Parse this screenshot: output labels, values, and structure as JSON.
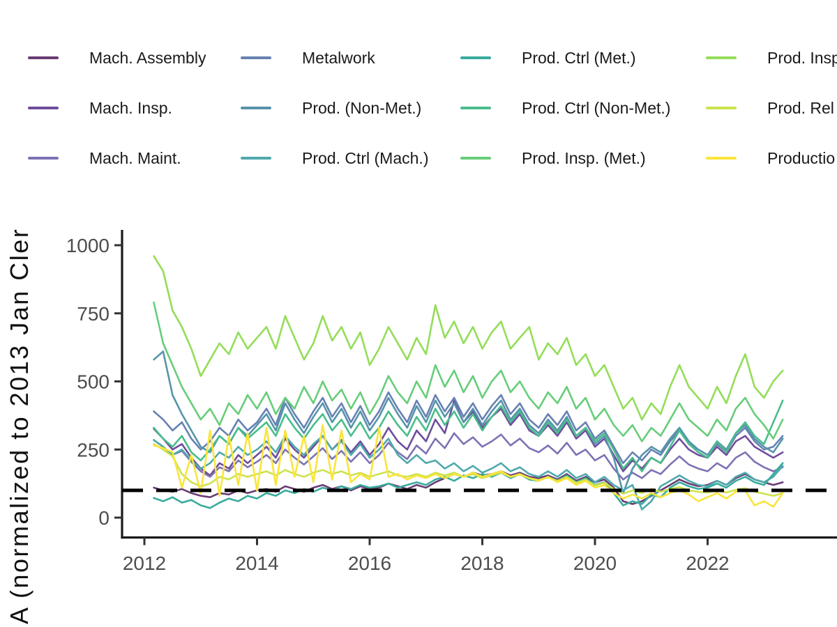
{
  "figure": {
    "background": "#ffffff",
    "axis_color": "#1a1a1a",
    "tick_color": "#333333",
    "tick_label_color": "#4d4d4d",
    "ylabel_visible": "A (normalized to 2013 Jan Cler",
    "reference_line": {
      "value": 100,
      "style": "dashed",
      "color": "#000000"
    }
  },
  "chart_data": {
    "type": "line",
    "title": "",
    "xlabel": "",
    "ylabel": "A (normalized to 2013 Jan Cler",
    "legend_position": "top",
    "grid": false,
    "x_start": 2012.1667,
    "x_step": 0.16667,
    "x_ticks": [
      2012,
      2014,
      2016,
      2018,
      2020,
      2022
    ],
    "y_ticks": [
      0,
      250,
      500,
      750,
      1000
    ],
    "xlim": [
      2011.6,
      2024.3
    ],
    "ylim": [
      -70,
      1070
    ],
    "reference_line_y": 100,
    "series": [
      {
        "name": "Mach. Assembly",
        "color": "#693c74",
        "values": [
          110,
          100,
          95,
          105,
          90,
          80,
          75,
          90,
          85,
          100,
          90,
          100,
          105,
          95,
          115,
          105,
          95,
          110,
          120,
          105,
          115,
          100,
          115,
          105,
          110,
          125,
          115,
          105,
          120,
          110,
          130,
          145,
          160,
          150,
          165,
          155,
          160,
          170,
          155,
          165,
          150,
          145,
          155,
          140,
          160,
          135,
          150,
          130,
          140,
          110,
          60,
          50,
          60,
          80,
          100,
          120,
          140,
          125,
          115,
          120,
          135,
          120,
          145,
          160,
          140,
          130,
          120,
          130
        ]
      },
      {
        "name": "Mach. Insp.",
        "color": "#6f4d9e",
        "values": [
          326,
          290,
          250,
          270,
          220,
          180,
          155,
          200,
          180,
          230,
          200,
          230,
          260,
          220,
          290,
          250,
          220,
          260,
          300,
          250,
          285,
          240,
          280,
          230,
          270,
          330,
          280,
          250,
          320,
          280,
          360,
          310,
          430,
          350,
          390,
          330,
          370,
          400,
          340,
          380,
          320,
          300,
          340,
          300,
          350,
          290,
          320,
          260,
          290,
          230,
          170,
          210,
          180,
          220,
          200,
          250,
          290,
          250,
          230,
          220,
          260,
          230,
          280,
          300,
          260,
          240,
          220,
          240
        ]
      },
      {
        "name": "Mach. Maint.",
        "color": "#7e72b4",
        "values": [
          285,
          260,
          230,
          245,
          205,
          170,
          150,
          185,
          170,
          210,
          185,
          205,
          230,
          200,
          250,
          220,
          195,
          225,
          255,
          215,
          245,
          205,
          240,
          200,
          230,
          275,
          240,
          215,
          265,
          235,
          290,
          255,
          310,
          270,
          295,
          260,
          280,
          305,
          265,
          290,
          255,
          240,
          265,
          235,
          275,
          230,
          250,
          210,
          230,
          180,
          140,
          165,
          145,
          175,
          160,
          195,
          225,
          195,
          180,
          170,
          200,
          180,
          220,
          240,
          205,
          185,
          170,
          185
        ]
      },
      {
        "name": "Metalwork",
        "color": "#6781b2",
        "values": [
          390,
          360,
          320,
          350,
          290,
          250,
          280,
          330,
          300,
          360,
          320,
          350,
          400,
          340,
          440,
          380,
          330,
          390,
          440,
          370,
          420,
          350,
          410,
          340,
          390,
          460,
          400,
          350,
          430,
          370,
          450,
          390,
          440,
          370,
          420,
          360,
          410,
          450,
          380,
          420,
          360,
          330,
          380,
          340,
          390,
          320,
          350,
          290,
          320,
          260,
          200,
          240,
          210,
          250,
          230,
          280,
          320,
          270,
          250,
          230,
          270,
          240,
          300,
          330,
          280,
          250,
          260,
          300
        ]
      },
      {
        "name": "Prod. (Non-Met.)",
        "color": "#5694aa",
        "values": [
          580,
          610,
          450,
          380,
          320,
          260,
          240,
          300,
          270,
          330,
          300,
          340,
          380,
          320,
          420,
          360,
          310,
          370,
          420,
          350,
          400,
          330,
          390,
          320,
          370,
          440,
          380,
          330,
          410,
          350,
          430,
          370,
          420,
          350,
          400,
          340,
          390,
          430,
          360,
          400,
          340,
          310,
          360,
          320,
          370,
          300,
          330,
          270,
          300,
          220,
          90,
          180,
          230,
          260,
          240,
          290,
          330,
          280,
          250,
          230,
          280,
          250,
          310,
          340,
          290,
          260,
          240,
          290
        ]
      },
      {
        "name": "Prod. Ctrl (Mach.)",
        "color": "#4fa9ad",
        "values": [
          285,
          260,
          230,
          250,
          210,
          180,
          200,
          240,
          220,
          260,
          230,
          250,
          280,
          240,
          300,
          260,
          230,
          270,
          300,
          250,
          280,
          230,
          270,
          220,
          250,
          290,
          230,
          200,
          230,
          200,
          210,
          180,
          200,
          170,
          190,
          165,
          180,
          200,
          170,
          185,
          160,
          150,
          170,
          150,
          175,
          145,
          160,
          130,
          150,
          120,
          100,
          120,
          30,
          60,
          115,
          135,
          155,
          135,
          120,
          115,
          135,
          120,
          150,
          165,
          140,
          130,
          150,
          190
        ]
      },
      {
        "name": "Prod. Ctrl (Met.)",
        "color": "#39ab9d",
        "values": [
          72,
          60,
          75,
          55,
          65,
          45,
          35,
          55,
          70,
          60,
          80,
          70,
          90,
          80,
          100,
          90,
          105,
          95,
          110,
          100,
          115,
          105,
          120,
          110,
          115,
          125,
          110,
          120,
          130,
          120,
          140,
          150,
          135,
          155,
          145,
          160,
          150,
          165,
          145,
          160,
          140,
          135,
          150,
          135,
          155,
          130,
          145,
          120,
          130,
          90,
          45,
          60,
          50,
          85,
          75,
          110,
          130,
          115,
          105,
          110,
          125,
          110,
          135,
          150,
          130,
          120,
          160,
          200
        ]
      },
      {
        "name": "Prod. Ctrl (Non-Met.)",
        "color": "#49bd8b",
        "values": [
          330,
          290,
          260,
          300,
          240,
          210,
          250,
          300,
          270,
          330,
          290,
          320,
          350,
          300,
          380,
          330,
          290,
          340,
          380,
          320,
          360,
          300,
          350,
          290,
          330,
          390,
          340,
          300,
          370,
          320,
          400,
          340,
          390,
          330,
          380,
          320,
          370,
          410,
          350,
          390,
          330,
          300,
          350,
          310,
          360,
          300,
          330,
          280,
          310,
          250,
          180,
          220,
          170,
          220,
          200,
          260,
          320,
          270,
          240,
          220,
          280,
          240,
          310,
          350,
          300,
          270,
          350,
          430
        ]
      },
      {
        "name": "Prod. Insp. (Met.)",
        "color": "#67cd79",
        "values": [
          790,
          640,
          560,
          480,
          420,
          360,
          400,
          340,
          420,
          380,
          450,
          400,
          460,
          380,
          440,
          400,
          480,
          420,
          500,
          430,
          470,
          400,
          460,
          380,
          440,
          520,
          460,
          420,
          500,
          440,
          560,
          480,
          540,
          460,
          520,
          440,
          500,
          540,
          460,
          500,
          440,
          400,
          460,
          420,
          480,
          400,
          440,
          360,
          400,
          340,
          300,
          340,
          280,
          330,
          300,
          360,
          420,
          360,
          330,
          300,
          360,
          320,
          400,
          440,
          380,
          340,
          290,
          360
        ]
      },
      {
        "name": "Prod. Insp",
        "color": "#94dd58",
        "values": [
          960,
          905,
          760,
          700,
          620,
          520,
          580,
          640,
          600,
          680,
          620,
          660,
          700,
          620,
          740,
          660,
          580,
          640,
          740,
          650,
          700,
          620,
          680,
          560,
          620,
          700,
          640,
          580,
          660,
          600,
          780,
          660,
          720,
          640,
          700,
          620,
          680,
          720,
          620,
          660,
          700,
          580,
          640,
          600,
          660,
          560,
          600,
          520,
          560,
          480,
          400,
          440,
          360,
          420,
          380,
          480,
          560,
          480,
          440,
          400,
          480,
          420,
          520,
          600,
          480,
          440,
          500,
          540
        ]
      },
      {
        "name": "Prod. Rel",
        "color": "#cde24e",
        "values": [
          270,
          250,
          225,
          160,
          130,
          115,
          125,
          150,
          140,
          160,
          150,
          160,
          170,
          155,
          175,
          160,
          150,
          165,
          175,
          160,
          170,
          155,
          165,
          150,
          160,
          170,
          155,
          150,
          160,
          150,
          165,
          155,
          165,
          150,
          160,
          145,
          155,
          165,
          150,
          158,
          145,
          138,
          148,
          135,
          150,
          128,
          140,
          118,
          128,
          105,
          88,
          100,
          90,
          105,
          95,
          105,
          112,
          100,
          95,
          92,
          100,
          92,
          102,
          108,
          95,
          88,
          80,
          90
        ]
      },
      {
        "name": "Productio",
        "color": "#f9e53c",
        "values": [
          265,
          255,
          240,
          110,
          230,
          90,
          320,
          80,
          300,
          120,
          310,
          100,
          330,
          120,
          320,
          150,
          300,
          130,
          340,
          140,
          320,
          130,
          160,
          140,
          330,
          150,
          160,
          140,
          155,
          145,
          160,
          145,
          160,
          150,
          165,
          150,
          160,
          170,
          150,
          160,
          145,
          135,
          150,
          130,
          145,
          120,
          135,
          110,
          120,
          90,
          70,
          85,
          70,
          90,
          75,
          90,
          100,
          85,
          60,
          75,
          90,
          70,
          95,
          100,
          45,
          60,
          40,
          90
        ]
      }
    ]
  }
}
